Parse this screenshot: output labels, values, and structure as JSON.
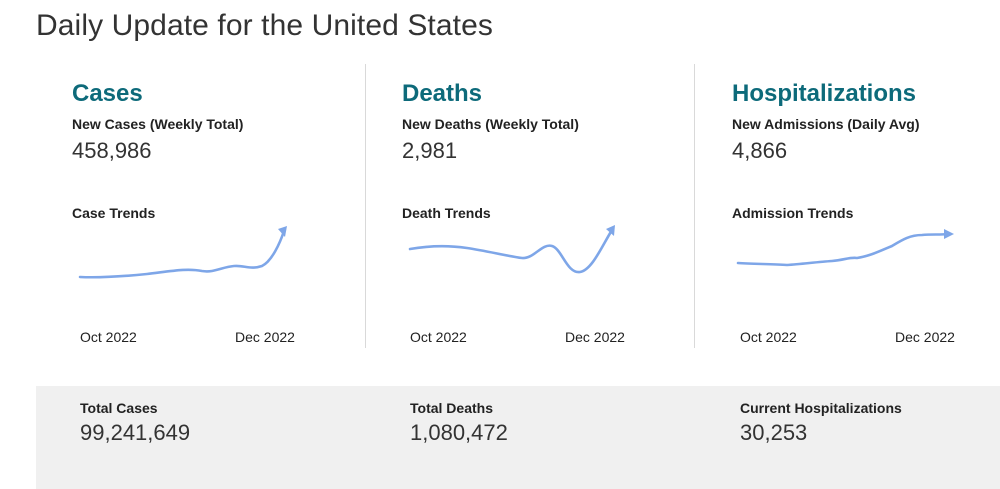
{
  "page": {
    "title": "Daily Update for the United States"
  },
  "cards": [
    {
      "title": "Cases",
      "subtitle": "New Cases (Weekly Total)",
      "value": "458,986",
      "trend_label": "Case Trends",
      "axis_start": "Oct 2022",
      "axis_end": "Dec 2022"
    },
    {
      "title": "Deaths",
      "subtitle": "New Deaths (Weekly Total)",
      "value": "2,981",
      "trend_label": "Death Trends",
      "axis_start": "Oct 2022",
      "axis_end": "Dec 2022"
    },
    {
      "title": "Hospitalizations",
      "subtitle": "New Admissions (Daily Avg)",
      "value": "4,866",
      "trend_label": "Admission Trends",
      "axis_start": "Oct 2022",
      "axis_end": "Dec 2022"
    }
  ],
  "totals": [
    {
      "label": "Total Cases",
      "value": "99,241,649"
    },
    {
      "label": "Total Deaths",
      "value": "1,080,472"
    },
    {
      "label": "Current Hospitalizations",
      "value": "30,253"
    }
  ],
  "colors": {
    "title_accent": "#0d6a7a",
    "trend_line": "#7ea6e8",
    "footer_bg": "#f0f0f0"
  },
  "icons": {
    "trend_arrow": "arrow-head-icon"
  }
}
